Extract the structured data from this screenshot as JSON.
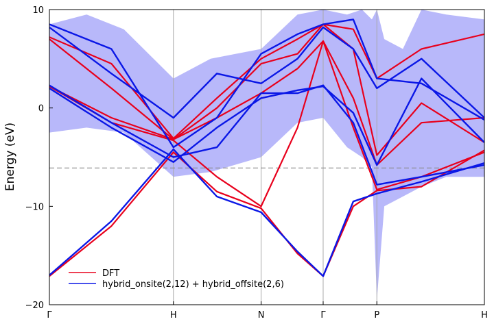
{
  "chart_data": {
    "type": "line",
    "title": "",
    "xlabel": "",
    "ylabel": "Energy (eV)",
    "ylim": [
      -20,
      10
    ],
    "yticks": [
      -20,
      -10,
      0,
      10
    ],
    "ytick_labels": [
      "−20",
      "−10",
      "0",
      "10"
    ],
    "kpath": [
      {
        "label": "Γ",
        "x": 0.0
      },
      {
        "label": "H",
        "x": 1.0
      },
      {
        "label": "N",
        "x": 1.707
      },
      {
        "label": "Γ",
        "x": 2.207
      },
      {
        "label": "P",
        "x": 2.64
      },
      {
        "label": "H",
        "x": 3.507
      }
    ],
    "fermi_level": -6.1,
    "legend": {
      "position": "bottom-left",
      "entries": [
        "DFT",
        "hybrid_onsite(2,12) + hybrid_offsite(2,6)"
      ]
    },
    "colors": {
      "DFT": "#e8001c",
      "model": "#0a17e6",
      "band": "#7272f5",
      "fermi": "#888888",
      "grid": "#a9a9a9"
    },
    "series": [
      {
        "name": "DFT",
        "bands": [
          {
            "x": [
              0,
              0.5,
              1,
              1.35,
              1.707,
              2.0,
              2.207,
              2.45,
              2.64,
              3.0,
              3.507
            ],
            "y": [
              -17.1,
              -12.0,
              -4.5,
              -8.5,
              -10.2,
              -14.8,
              -17.1,
              -10.0,
              -8.4,
              -8.0,
              -4.3
            ]
          },
          {
            "x": [
              0,
              0.5,
              1,
              1.35,
              1.707,
              2.0,
              2.207,
              2.45,
              2.64,
              3.0,
              3.507
            ],
            "y": [
              2.2,
              -1.5,
              -3.3,
              -7.0,
              -10.0,
              -2.0,
              6.8,
              -2.0,
              -8.3,
              -7.0,
              -4.5
            ]
          },
          {
            "x": [
              0,
              0.5,
              1,
              1.35,
              1.707,
              2.0,
              2.207,
              2.45,
              2.64,
              3.0,
              3.507
            ],
            "y": [
              2.2,
              -1.0,
              -3.2,
              -1.0,
              1.5,
              4.0,
              6.8,
              1.0,
              -5.8,
              -1.5,
              -1.0
            ]
          },
          {
            "x": [
              0,
              0.5,
              1,
              1.35,
              1.707,
              2.0,
              2.207,
              2.45,
              2.64,
              3.0,
              3.507
            ],
            "y": [
              7.0,
              2.0,
              -3.2,
              0.0,
              4.5,
              5.5,
              8.5,
              6.0,
              -4.8,
              0.5,
              -3.5
            ]
          },
          {
            "x": [
              0,
              0.5,
              1,
              1.35,
              1.707,
              2.0,
              2.207,
              2.45,
              2.64,
              3.0,
              3.507
            ],
            "y": [
              7.2,
              4.5,
              -3.1,
              1.0,
              5.0,
              7.0,
              8.5,
              8.0,
              3.0,
              6.0,
              7.5
            ]
          }
        ]
      },
      {
        "name": "hybrid_onsite(2,12) + hybrid_offsite(2,6)",
        "bands": [
          {
            "x": [
              0,
              0.5,
              1,
              1.35,
              1.707,
              2.0,
              2.207,
              2.45,
              2.64,
              3.0,
              3.507
            ],
            "y": [
              -17.0,
              -11.5,
              -4.2,
              -9.0,
              -10.6,
              -14.6,
              -17.1,
              -9.5,
              -8.7,
              -7.5,
              -5.6
            ]
          },
          {
            "x": [
              0,
              0.5,
              1,
              1.35,
              1.707,
              2.0,
              2.207,
              2.45,
              2.64,
              3.0,
              3.507
            ],
            "y": [
              2.3,
              -1.5,
              -5.0,
              -4.0,
              1.5,
              1.5,
              2.3,
              -1.5,
              -7.8,
              -7.0,
              -5.8
            ]
          },
          {
            "x": [
              0,
              0.5,
              1,
              1.35,
              1.707,
              2.0,
              2.207,
              2.45,
              2.64,
              3.0,
              3.507
            ],
            "y": [
              2.0,
              -2.0,
              -5.5,
              -2.0,
              1.0,
              1.8,
              2.2,
              -0.5,
              -5.8,
              3.0,
              -3.5
            ]
          },
          {
            "x": [
              0,
              0.5,
              1,
              1.35,
              1.707,
              2.0,
              2.207,
              2.45,
              2.64,
              3.0,
              3.507
            ],
            "y": [
              8.2,
              3.5,
              -1.0,
              3.5,
              2.5,
              5.0,
              8.2,
              6.0,
              2.0,
              5.0,
              -1.0
            ]
          },
          {
            "x": [
              0,
              0.5,
              1,
              1.35,
              1.707,
              2.0,
              2.207,
              2.45,
              2.64,
              3.0,
              3.507
            ],
            "y": [
              8.5,
              6.0,
              -4.0,
              -1.0,
              5.5,
              7.5,
              8.5,
              9.0,
              3.0,
              2.5,
              -1.2
            ]
          }
        ]
      }
    ],
    "uncertainty_band": {
      "x": [
        0,
        0.3,
        0.6,
        1,
        1.3,
        1.707,
        2.0,
        2.207,
        2.4,
        2.52,
        2.6,
        2.64,
        2.7,
        2.85,
        3.0,
        3.2,
        3.507
      ],
      "lower": [
        -2.5,
        -2.0,
        -2.5,
        -7.0,
        -6.5,
        -5.0,
        -1.5,
        -1.0,
        -4.0,
        -5.0,
        -6.0,
        -19.5,
        -10.0,
        -9.0,
        -8.0,
        -7.0,
        -7.0
      ],
      "upper": [
        8.5,
        9.5,
        8.0,
        3.0,
        5.0,
        6.0,
        9.5,
        10,
        9.5,
        10,
        9.0,
        10,
        7.0,
        6.0,
        10,
        9.5,
        9.0
      ]
    }
  }
}
